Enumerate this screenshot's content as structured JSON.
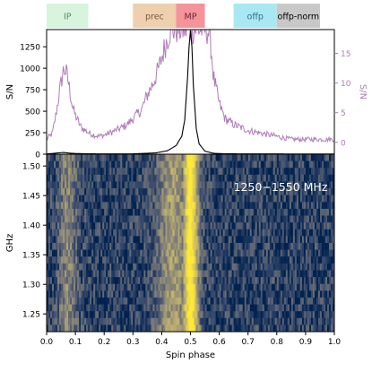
{
  "chart_data": {
    "type": "line",
    "xlabel": "Spin phase",
    "xlim": [
      0.0,
      1.0
    ],
    "xticks": [
      "0.0",
      "0.1",
      "0.2",
      "0.3",
      "0.4",
      "0.5",
      "0.6",
      "0.7",
      "0.8",
      "0.9",
      "1.0"
    ],
    "phase_windows": [
      {
        "label": "IP",
        "start": 0.0,
        "end": 0.145,
        "color": "#d6f5dc",
        "text_color": "#5a8a60"
      },
      {
        "label": "prec",
        "start": 0.3,
        "end": 0.45,
        "color": "#eecfae",
        "text_color": "#7a5a45"
      },
      {
        "label": "MP",
        "start": 0.45,
        "end": 0.55,
        "color": "#f4939a",
        "text_color": "#6a2a32"
      },
      {
        "label": "offp",
        "start": 0.65,
        "end": 0.8,
        "color": "#a8e8f2",
        "text_color": "#3e6c78"
      },
      {
        "label": "offp-norm",
        "start": 0.8,
        "end": 0.95,
        "color": "#c8c8c8",
        "text_color": "#000000"
      }
    ],
    "profile": {
      "ylabel": "S/N",
      "ylim": [
        0,
        1450
      ],
      "yticks": [
        "0",
        "250",
        "500",
        "750",
        "1000",
        "1250"
      ],
      "color": "#000000",
      "phase": [
        0.0,
        0.02,
        0.04,
        0.06,
        0.08,
        0.1,
        0.14,
        0.2,
        0.3,
        0.38,
        0.42,
        0.45,
        0.47,
        0.48,
        0.49,
        0.495,
        0.5,
        0.505,
        0.51,
        0.52,
        0.53,
        0.55,
        0.58,
        0.62,
        0.7,
        0.8,
        0.9,
        1.0
      ],
      "snr": [
        3,
        8,
        15,
        20,
        12,
        8,
        5,
        3,
        4,
        15,
        40,
        100,
        210,
        400,
        900,
        1250,
        1440,
        1250,
        800,
        300,
        120,
        35,
        10,
        5,
        3,
        3,
        2,
        2
      ]
    },
    "zoomed_profile": {
      "ylabel": "S/N",
      "ylim": [
        -2,
        19
      ],
      "yticks": [
        "0",
        "5",
        "10",
        "15"
      ],
      "color": "#b07cb8",
      "phase": [
        0.0,
        0.02,
        0.03,
        0.04,
        0.05,
        0.06,
        0.07,
        0.08,
        0.09,
        0.1,
        0.12,
        0.15,
        0.18,
        0.2,
        0.23,
        0.25,
        0.28,
        0.3,
        0.33,
        0.35,
        0.37,
        0.39,
        0.41,
        0.43,
        0.44,
        0.56,
        0.57,
        0.58,
        0.6,
        0.62,
        0.65,
        0.7,
        0.75,
        0.8,
        0.85,
        0.9,
        0.95,
        1.0
      ],
      "snr": [
        0.5,
        1.5,
        4,
        7,
        10,
        12.5,
        11.5,
        9,
        6,
        4.5,
        2.5,
        1.5,
        1,
        1.2,
        1.8,
        2.2,
        3,
        4,
        5.5,
        8,
        10,
        12.5,
        16,
        19,
        19,
        19,
        17,
        11,
        6.5,
        4,
        3,
        2,
        1.5,
        1,
        0.5,
        0.5,
        0.5,
        0.5
      ]
    },
    "dynamic_spectrum": {
      "type": "heatmap",
      "ylabel": "GHz",
      "ylim": [
        1.52,
        1.22
      ],
      "yticks": [
        "1.25",
        "1.30",
        "1.35",
        "1.40",
        "1.45",
        "1.50"
      ],
      "annotation": "1250−1550 MHz",
      "colormap": "cividis"
    }
  }
}
